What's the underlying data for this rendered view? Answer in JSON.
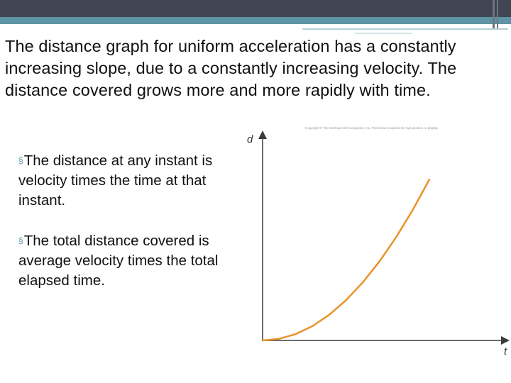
{
  "slide": {
    "paragraph": "The distance graph for uniform acceleration has a constantly increasing slope, due to a constantly increasing velocity.  The distance covered grows more and more rapidly with time.",
    "bullets": [
      "The distance at any instant is velocity times the time at that instant.",
      "The total distance covered is average velocity times the total elapsed time."
    ],
    "bullet_symbol": "§",
    "copyright": "Copyright © The McGraw-Hill Companies, Inc. Permission required for reproduction or display."
  },
  "chart_data": {
    "type": "line",
    "xlabel": "t",
    "ylabel": "d",
    "series": [
      {
        "x": [
          0,
          0.1,
          0.2,
          0.3,
          0.4,
          0.5,
          0.6,
          0.7,
          0.8,
          0.9,
          1.0
        ],
        "y": [
          0,
          0.01,
          0.04,
          0.09,
          0.16,
          0.25,
          0.36,
          0.49,
          0.64,
          0.81,
          1.0
        ]
      }
    ],
    "xlim": [
      0,
      1.0
    ],
    "ylim": [
      0,
      1.0
    ],
    "grid": false,
    "line_color": "#e8932a",
    "axis_color": "#3b3b3b"
  },
  "theme": {
    "accent": "#5f94a6",
    "header_band": "#3f4553"
  }
}
